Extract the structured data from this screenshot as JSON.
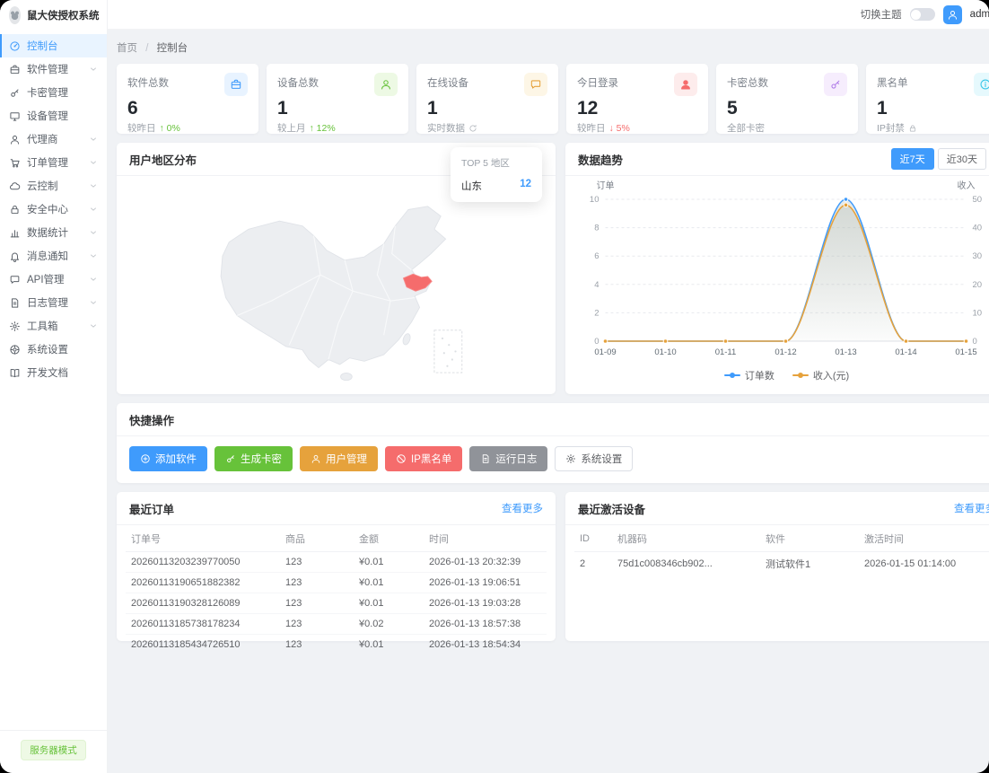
{
  "app": {
    "title": "鼠大侠授权系统",
    "mode_badge": "服务器模式"
  },
  "topbar": {
    "theme_label": "切换主题",
    "username": "admin"
  },
  "sidebar": {
    "items": [
      {
        "label": "控制台",
        "icon": "dashboard-icon",
        "active": true,
        "expandable": false
      },
      {
        "label": "软件管理",
        "icon": "briefcase-icon",
        "active": false,
        "expandable": true
      },
      {
        "label": "卡密管理",
        "icon": "key-icon",
        "active": false,
        "expandable": false
      },
      {
        "label": "设备管理",
        "icon": "monitor-icon",
        "active": false,
        "expandable": false
      },
      {
        "label": "代理商",
        "icon": "user-icon",
        "active": false,
        "expandable": true
      },
      {
        "label": "订单管理",
        "icon": "cart-icon",
        "active": false,
        "expandable": true
      },
      {
        "label": "云控制",
        "icon": "cloud-icon",
        "active": false,
        "expandable": true
      },
      {
        "label": "安全中心",
        "icon": "lock-icon",
        "active": false,
        "expandable": true
      },
      {
        "label": "数据统计",
        "icon": "chart-icon",
        "active": false,
        "expandable": true
      },
      {
        "label": "消息通知",
        "icon": "bell-icon",
        "active": false,
        "expandable": true
      },
      {
        "label": "API管理",
        "icon": "chat-icon",
        "active": false,
        "expandable": true
      },
      {
        "label": "日志管理",
        "icon": "file-icon",
        "active": false,
        "expandable": true
      },
      {
        "label": "工具箱",
        "icon": "gear-icon",
        "active": false,
        "expandable": true
      },
      {
        "label": "系统设置",
        "icon": "settings-icon",
        "active": false,
        "expandable": false
      },
      {
        "label": "开发文档",
        "icon": "book-icon",
        "active": false,
        "expandable": false
      }
    ]
  },
  "breadcrumb": {
    "home": "首页",
    "sep": "/",
    "current": "控制台"
  },
  "stats": [
    {
      "title": "软件总数",
      "value": "6",
      "foot_label": "较昨日",
      "trend": "up",
      "trend_value": "0%",
      "foot_icon": "",
      "icon": "briefcase-icon",
      "accent": "#3f9bfc",
      "icon_bg": "#e8f3ff"
    },
    {
      "title": "设备总数",
      "value": "1",
      "foot_label": "较上月",
      "trend": "up",
      "trend_value": "12%",
      "foot_icon": "",
      "icon": "user-icon",
      "accent": "#67c23a",
      "icon_bg": "#edf9e4"
    },
    {
      "title": "在线设备",
      "value": "1",
      "foot_label": "实时数据",
      "trend": "",
      "trend_value": "",
      "foot_icon": "refresh-icon",
      "icon": "chat-icon",
      "accent": "#e6a23c",
      "icon_bg": "#fdf6e6"
    },
    {
      "title": "今日登录",
      "value": "12",
      "foot_label": "较昨日",
      "trend": "down",
      "trend_value": "5%",
      "foot_icon": "",
      "icon": "user-filled-icon",
      "accent": "#f56c6c",
      "icon_bg": "#fdecec"
    },
    {
      "title": "卡密总数",
      "value": "5",
      "foot_label": "全部卡密",
      "trend": "",
      "trend_value": "",
      "foot_icon": "",
      "icon": "key-icon",
      "accent": "#b07ce8",
      "icon_bg": "#f6edfd"
    },
    {
      "title": "黑名单",
      "value": "1",
      "foot_label": "IP封禁",
      "trend": "",
      "trend_value": "",
      "foot_icon": "lock-icon",
      "icon": "info-icon",
      "accent": "#36c6e8",
      "icon_bg": "#e6f9fd"
    }
  ],
  "map_card": {
    "title": "用户地区分布",
    "tooltip": {
      "title": "TOP 5 地区",
      "rows": [
        {
          "name": "山东",
          "value": "12"
        }
      ]
    },
    "highlight_color": "#f56c6c"
  },
  "trend_card": {
    "title": "数据趋势",
    "range_buttons": [
      "近7天",
      "近30天"
    ],
    "active_range": 0
  },
  "chart_data": {
    "type": "line",
    "title": "数据趋势",
    "x": [
      "01-09",
      "01-10",
      "01-11",
      "01-12",
      "01-13",
      "01-14",
      "01-15"
    ],
    "series": [
      {
        "name": "订单数",
        "axis": "left",
        "color": "#3f9bfc",
        "values": [
          0,
          0,
          0,
          0,
          10,
          0,
          0
        ]
      },
      {
        "name": "收入(元)",
        "axis": "right",
        "color": "#e6a23c",
        "values": [
          0,
          0,
          0,
          0,
          48,
          0,
          0
        ]
      }
    ],
    "y_left": {
      "label": "订单",
      "min": 0,
      "max": 10,
      "ticks": [
        0,
        2,
        4,
        6,
        8,
        10
      ]
    },
    "y_right": {
      "label": "收入",
      "min": 0,
      "max": 50,
      "ticks": [
        0,
        10,
        20,
        30,
        40,
        50
      ]
    },
    "smooth": true,
    "area": true,
    "grid": true,
    "legend_position": "bottom"
  },
  "quick_actions": {
    "title": "快捷操作",
    "buttons": [
      {
        "label": "添加软件",
        "icon": "plus-circle-icon",
        "bg": "#3f9bfc",
        "fg": "#ffffff",
        "border": ""
      },
      {
        "label": "生成卡密",
        "icon": "key-icon",
        "bg": "#67c23a",
        "fg": "#ffffff",
        "border": ""
      },
      {
        "label": "用户管理",
        "icon": "user-icon",
        "bg": "#e6a23c",
        "fg": "#ffffff",
        "border": ""
      },
      {
        "label": "IP黑名单",
        "icon": "ban-icon",
        "bg": "#f56c6c",
        "fg": "#ffffff",
        "border": ""
      },
      {
        "label": "运行日志",
        "icon": "file-icon",
        "bg": "#909399",
        "fg": "#ffffff",
        "border": ""
      },
      {
        "label": "系统设置",
        "icon": "gear-icon",
        "bg": "#ffffff",
        "fg": "#606266",
        "border": "#dcdfe6"
      }
    ]
  },
  "orders_card": {
    "title": "最近订单",
    "more": "查看更多",
    "headers": [
      "订单号",
      "商品",
      "金额",
      "时间"
    ],
    "amount_col": 2,
    "rows": [
      [
        "20260113203239770050",
        "123",
        "¥0.01",
        "2026-01-13 20:32:39"
      ],
      [
        "20260113190651882382",
        "123",
        "¥0.01",
        "2026-01-13 19:06:51"
      ],
      [
        "20260113190328126089",
        "123",
        "¥0.01",
        "2026-01-13 19:03:28"
      ],
      [
        "20260113185738178234",
        "123",
        "¥0.02",
        "2026-01-13 18:57:38"
      ],
      [
        "20260113185434726510",
        "123",
        "¥0.01",
        "2026-01-13 18:54:34"
      ]
    ]
  },
  "devices_card": {
    "title": "最近激活设备",
    "more": "查看更多",
    "headers": [
      "ID",
      "机器码",
      "软件",
      "激活时间"
    ],
    "amount_col": -1,
    "rows": [
      [
        "2",
        "75d1c008346cb902...",
        "测试软件1",
        "2026-01-15 01:14:00"
      ]
    ]
  }
}
